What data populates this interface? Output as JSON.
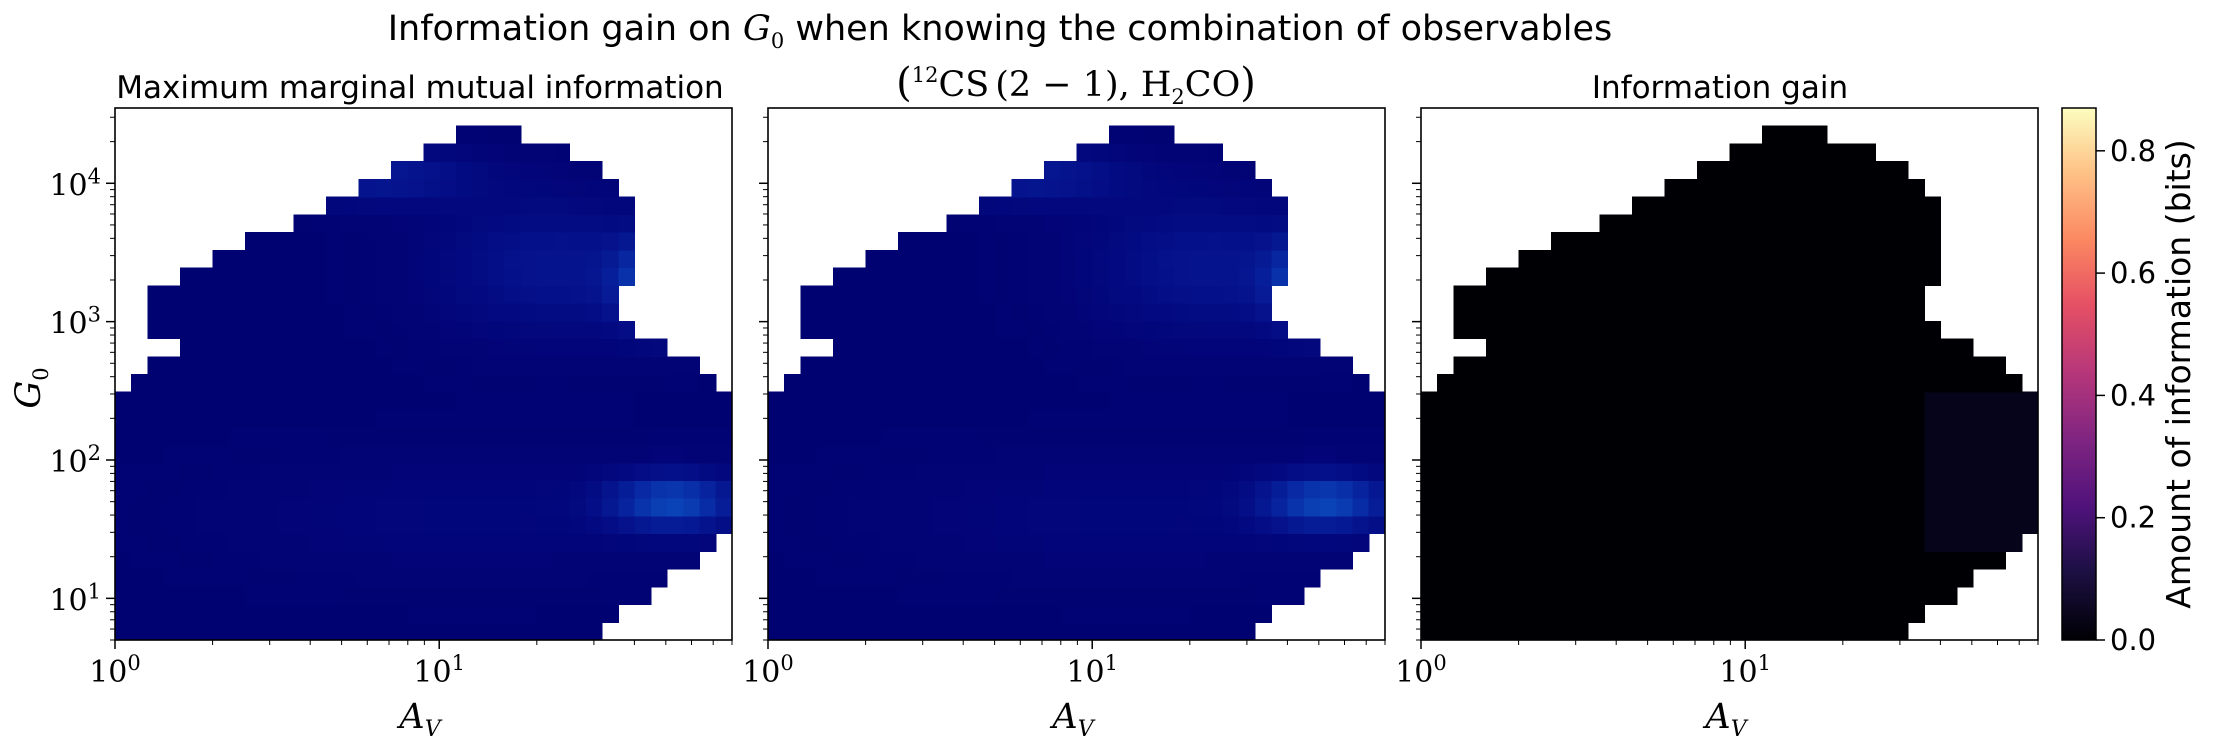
{
  "chart_data": {
    "type": "heatmap",
    "suptitle": {
      "prefix": "Information gain on ",
      "math_var": "G",
      "math_sub": "0",
      "suffix": " when knowing the combination of observables"
    },
    "x_scale": "log",
    "y_scale": "log",
    "xlim": [
      1,
      80
    ],
    "ylim": [
      5,
      35000
    ],
    "x_ticks": [
      {
        "base": "10",
        "exp": "0",
        "value": 1
      },
      {
        "base": "10",
        "exp": "1",
        "value": 10
      }
    ],
    "y_ticks": [
      {
        "base": "10",
        "exp": "1",
        "value": 10
      },
      {
        "base": "10",
        "exp": "2",
        "value": 100
      },
      {
        "base": "10",
        "exp": "3",
        "value": 1000
      },
      {
        "base": "10",
        "exp": "4",
        "value": 10000
      }
    ],
    "xlabel": {
      "var": "A",
      "sub": "V"
    },
    "ylabel": {
      "var": "G",
      "sub": "0"
    },
    "panels": [
      {
        "id": "max-marginal",
        "title": "Maximum marginal mutual information",
        "colormap": "blue",
        "show_ylabel": true
      },
      {
        "id": "combination",
        "title_math": {
          "open": "(",
          "sup": "12",
          "species1": "CS",
          "transition": "(2 − 1), ",
          "species2": "H",
          "sub2": "2",
          "species2b": "CO",
          "close": ")"
        },
        "colormap": "blue",
        "show_ylabel": false
      },
      {
        "id": "gain",
        "title": "Information gain",
        "colormap": "magma",
        "show_ylabel": false
      }
    ],
    "colorbar": {
      "label": "Amount of information (bits)",
      "range": [
        0,
        0.87
      ],
      "ticks": [
        {
          "value": 0.0,
          "label": "0.0"
        },
        {
          "value": 0.2,
          "label": "0.2"
        },
        {
          "value": 0.4,
          "label": "0.4"
        },
        {
          "value": 0.6,
          "label": "0.6"
        },
        {
          "value": 0.8,
          "label": "0.8"
        }
      ]
    },
    "grid": {
      "x_cells": 38,
      "y_cells": 30,
      "x_range_log10": [
        0,
        1.903
      ],
      "y_range_log10": [
        0.699,
        4.544
      ],
      "mask_right_edge_log10_av": [
        1.48,
        1.56,
        1.65,
        1.71,
        1.79,
        1.86,
        1.9,
        1.9,
        1.9,
        1.9,
        1.9,
        1.9,
        1.9,
        1.9,
        1.85,
        1.78,
        1.7,
        1.62,
        1.55,
        1.55,
        1.6,
        1.62,
        1.62,
        1.62,
        1.6,
        1.55,
        1.48,
        1.4,
        1.25,
        1.06
      ],
      "mask_left_edge_log10_av": [
        0,
        0,
        0,
        0,
        0,
        0,
        0,
        0,
        0,
        0,
        0,
        0,
        0,
        0,
        0.06,
        0.12,
        0.18,
        0.12,
        0.12,
        0.12,
        0.18,
        0.3,
        0.42,
        0.55,
        0.65,
        0.75,
        0.84,
        0.95,
        1.06,
        1.18
      ],
      "blobs_blue": [
        {
          "log_av": 1.7,
          "log_g0": 3.28,
          "amp": 0.55,
          "sx": 0.1,
          "sy": 0.22
        },
        {
          "log_av": 1.72,
          "log_g0": 1.7,
          "amp": 0.45,
          "sx": 0.14,
          "sy": 0.14
        },
        {
          "log_av": 0.8,
          "log_g0": 4.05,
          "amp": 0.22,
          "sx": 0.22,
          "sy": 0.14
        },
        {
          "log_av": 1.35,
          "log_g0": 3.4,
          "amp": 0.18,
          "sx": 0.25,
          "sy": 0.35
        },
        {
          "log_av": 1.1,
          "log_g0": 1.6,
          "amp": 0.06,
          "sx": 0.5,
          "sy": 0.3
        }
      ],
      "base_blue_level": 0.06,
      "gain_level": 0.008
    }
  }
}
